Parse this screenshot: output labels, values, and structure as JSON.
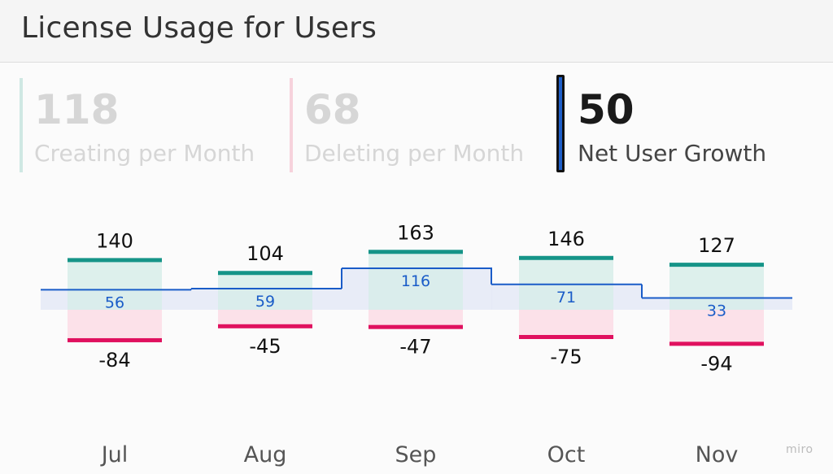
{
  "header": {
    "title": "License Usage for Users"
  },
  "kpis": [
    {
      "value": "118",
      "label": "Creating per Month",
      "color": "#cfe8e3",
      "state": "dim"
    },
    {
      "value": "68",
      "label": "Deleting per Month",
      "color": "#f6d2dc",
      "state": "dim"
    },
    {
      "value": "50",
      "label": "Net User Growth",
      "color": "#1f5fc9",
      "state": "selected"
    }
  ],
  "chart_data": {
    "type": "bar",
    "categories": [
      "Jul",
      "Aug",
      "Sep",
      "Oct",
      "Nov"
    ],
    "series": [
      {
        "values": [
          140,
          104,
          163,
          146,
          127
        ],
        "color": "#159488",
        "fill": "#d6ede9"
      },
      {
        "values": [
          -84,
          -45,
          -47,
          -75,
          -94
        ],
        "color": "#e0115f",
        "fill": "#fbdce5"
      },
      {
        "values": [
          56,
          59,
          116,
          71,
          33
        ],
        "color": "#1a5cc8"
      }
    ],
    "grid": false,
    "legend": "none"
  },
  "watermark": "miro"
}
